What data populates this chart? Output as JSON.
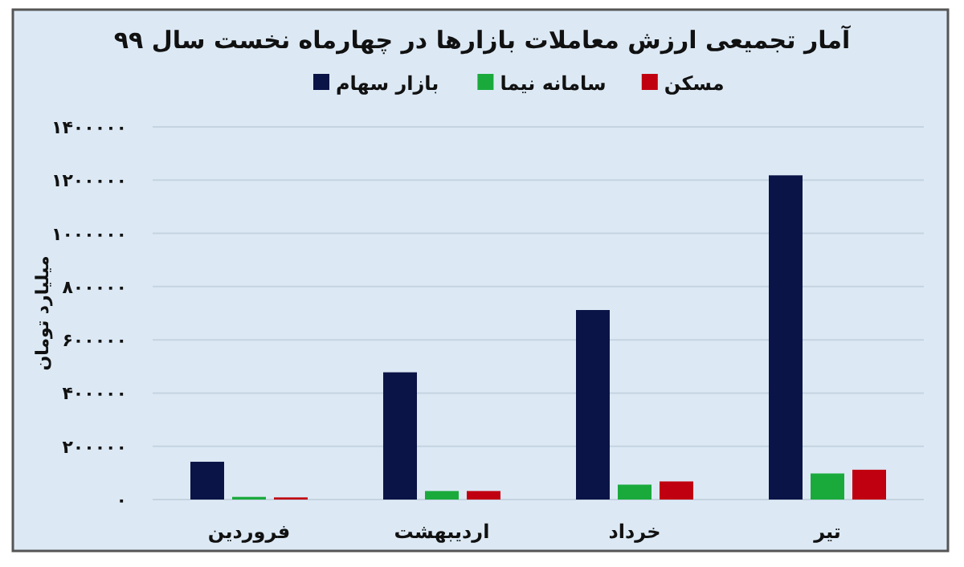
{
  "chart_data": {
    "type": "bar",
    "title": "آمار تجمیعی ارزش معاملات بازارها در چهارماه نخست سال ۹۹",
    "ylabel": "میلیارد تومان",
    "categories": [
      "فروردین",
      "اردیبهشت",
      "خرداد",
      "تیر"
    ],
    "series": [
      {
        "name": "بازار سهام",
        "color": "#0a1446",
        "values": [
          142000,
          478000,
          712000,
          1218000
        ]
      },
      {
        "name": "سامانه نیما",
        "color": "#1aaa3c",
        "values": [
          10000,
          32000,
          56000,
          98000
        ]
      },
      {
        "name": "مسکن",
        "color": "#c00010",
        "values": [
          8000,
          32000,
          68000,
          112000
        ]
      }
    ],
    "ylim": [
      0,
      1400000
    ],
    "yticks": [
      {
        "value": 0,
        "label": "۰"
      },
      {
        "value": 200000,
        "label": "۲۰۰۰۰۰"
      },
      {
        "value": 400000,
        "label": "۴۰۰۰۰۰"
      },
      {
        "value": 600000,
        "label": "۶۰۰۰۰۰"
      },
      {
        "value": 800000,
        "label": "۸۰۰۰۰۰"
      },
      {
        "value": 1000000,
        "label": "۱۰۰۰۰۰۰"
      },
      {
        "value": 1200000,
        "label": "۱۲۰۰۰۰۰"
      },
      {
        "value": 1400000,
        "label": "۱۴۰۰۰۰۰"
      }
    ],
    "grid": "y",
    "legend": "top"
  }
}
